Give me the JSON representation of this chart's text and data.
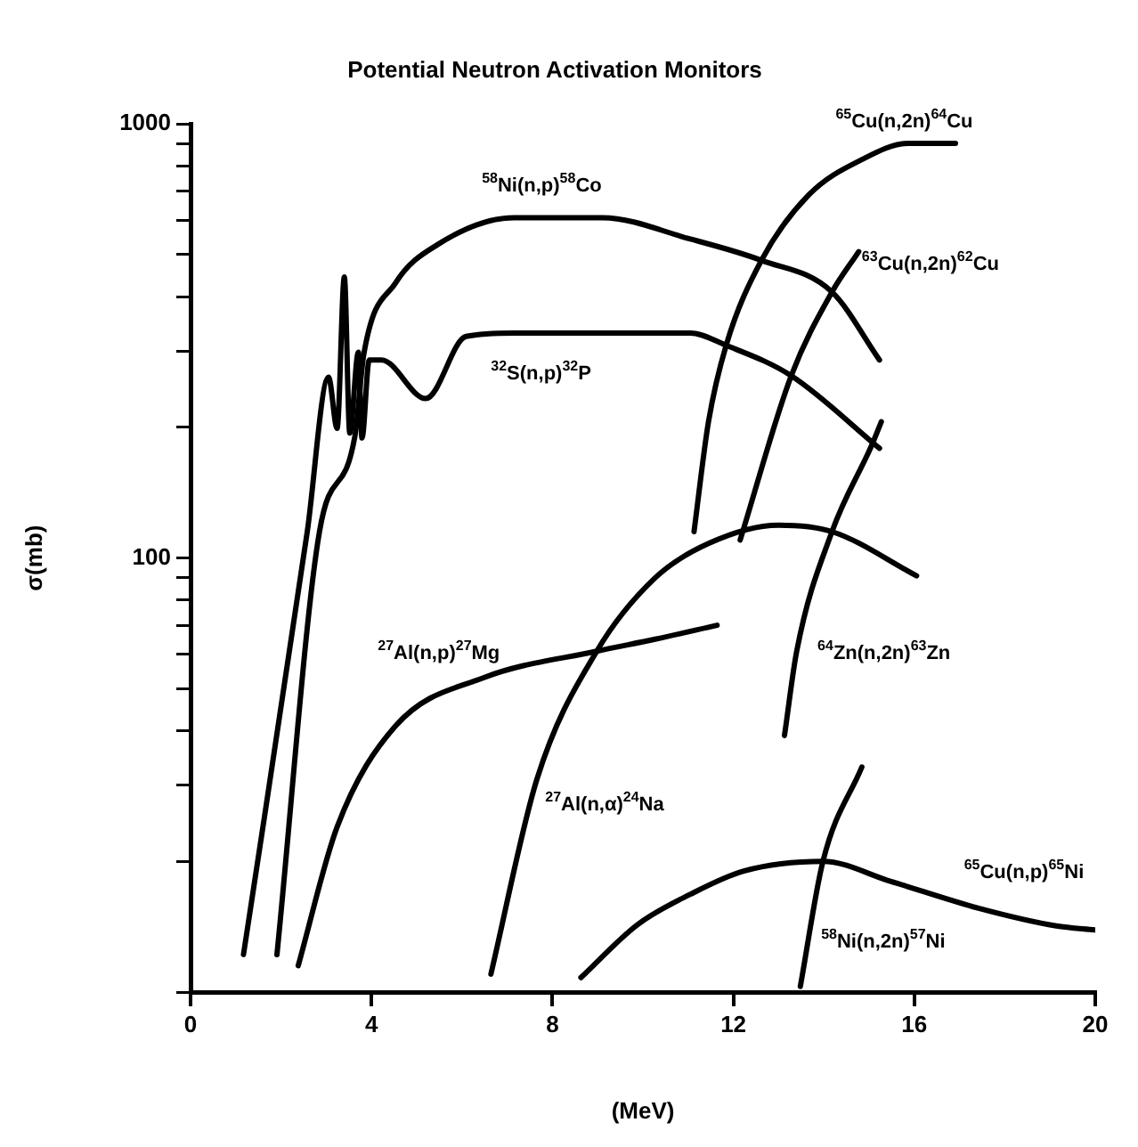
{
  "chart_data": {
    "type": "line",
    "title": "Potential Neutron Activation Monitors",
    "xlabel": "(MeV)",
    "ylabel": "σ(mb)",
    "log": "y",
    "marker": "none",
    "line_style": "solid",
    "legend": false,
    "xlim": [
      0,
      20
    ],
    "xticks": [
      0,
      4,
      8,
      12,
      16,
      20
    ],
    "ylim": [
      10,
      1000
    ],
    "yticks": [
      {
        "value": 10,
        "label": null
      },
      {
        "value": 20,
        "label": null
      },
      {
        "value": 30,
        "label": null
      },
      {
        "value": 40,
        "label": null
      },
      {
        "value": 50,
        "label": null
      },
      {
        "value": 60,
        "label": null
      },
      {
        "value": 70,
        "label": null
      },
      {
        "value": 80,
        "label": null
      },
      {
        "value": 90,
        "label": null
      },
      100,
      {
        "value": 200,
        "label": null
      },
      {
        "value": 300,
        "label": null
      },
      {
        "value": 400,
        "label": null
      },
      {
        "value": 500,
        "label": null
      },
      {
        "value": 600,
        "label": null
      },
      {
        "value": 700,
        "label": null
      },
      {
        "value": 800,
        "label": null
      },
      {
        "value": 900,
        "label": null
      },
      1000
    ],
    "series": [
      {
        "name": "$^{32}$S(n,p)$^{32}$P",
        "color": "#000000",
        "x": [
          1.17,
          2.58,
          3.05,
          3.24,
          3.4,
          3.52,
          3.71,
          3.79,
          3.95,
          4.22,
          5.2,
          6.09,
          7.15,
          11.05,
          11.84,
          13.28,
          15.23
        ],
        "values": [
          12.2,
          115,
          261,
          199,
          444,
          194,
          298,
          189,
          286,
          286,
          233,
          324,
          330,
          330,
          309,
          263,
          179
        ]
      },
      {
        "name": "$^{58}$Ni(n,p)$^{58}$Co",
        "color": "#000000",
        "x": [
          1.91,
          2.85,
          3.63,
          3.83,
          4.53,
          5.47,
          7.15,
          9.1,
          11.05,
          12.62,
          14.18,
          15.23
        ],
        "values": [
          12.2,
          115,
          190,
          295,
          430,
          528,
          608,
          608,
          543,
          485,
          410,
          286
        ]
      },
      {
        "name": "$^{27}$Al(n,p)$^{27}$Mg",
        "color": "#000000",
        "x": [
          2.38,
          3.24,
          4.53,
          6.48,
          8.98,
          10.27,
          11.64
        ],
        "values": [
          11.5,
          24,
          41,
          53,
          61,
          65,
          70
        ]
      },
      {
        "name": "$^{27}$Al(n,α)$^{24}$Na",
        "color": "#000000",
        "x": [
          6.64,
          7.66,
          8.98,
          10.27,
          11.45,
          13.0,
          14.18,
          16.05
        ],
        "values": [
          11,
          31,
          61,
          90,
          108,
          119,
          115,
          91
        ]
      },
      {
        "name": "$^{65}$Cu(n,p)$^{65}$Ni",
        "color": "#000000",
        "x": [
          8.63,
          9.88,
          11.05,
          12.23,
          13.98,
          15.47,
          17.42,
          19.14,
          20
        ],
        "values": [
          10.8,
          14.3,
          16.8,
          19,
          20,
          18,
          15.6,
          14.2,
          13.9
        ]
      },
      {
        "name": "$^{58}$Ni(n,2n)$^{57}$Ni",
        "color": "#000000",
        "x": [
          13.48,
          13.98,
          14.84
        ],
        "values": [
          10.3,
          20,
          33
        ]
      },
      {
        "name": "$^{64}$Zn(n,2n)$^{63}$Zn",
        "color": "#000000",
        "x": [
          13.13,
          13.4,
          14.18,
          15.08,
          15.27
        ],
        "values": [
          39,
          61,
          115,
          184,
          206
        ]
      },
      {
        "name": "$^{63}$Cu(n,2n)$^{62}$Cu",
        "color": "#000000",
        "x": [
          12.15,
          13.28,
          14.18,
          14.77
        ],
        "values": [
          110,
          263,
          410,
          508
        ]
      },
      {
        "name": "$^{65}$Cu(n,2n)$^{64}$Cu",
        "color": "#000000",
        "x": [
          11.13,
          11.45,
          11.84,
          12.62,
          13.67,
          14.84,
          15.86,
          16.91
        ],
        "values": [
          115,
          206,
          309,
          485,
          687,
          828,
          902,
          902
        ]
      }
    ]
  }
}
